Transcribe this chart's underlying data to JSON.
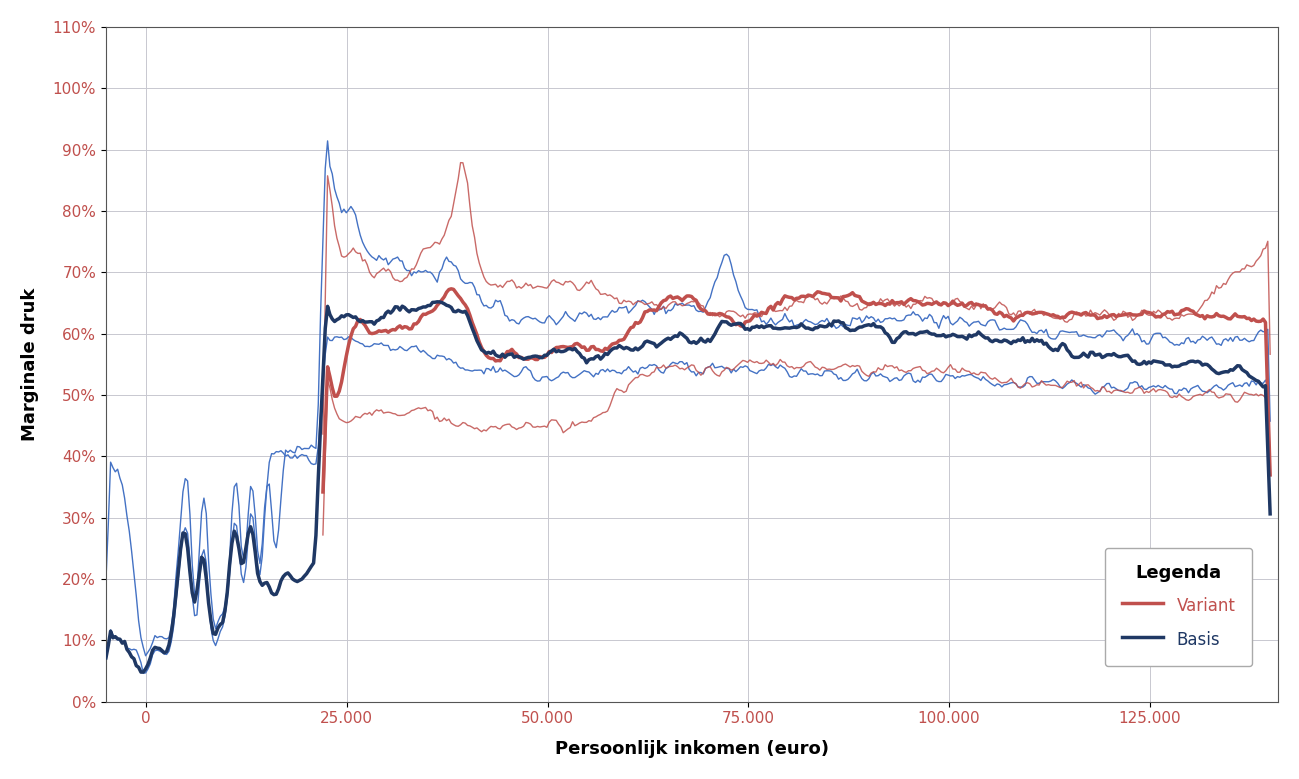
{
  "xlabel": "Persoonlijk inkomen (euro)",
  "ylabel": "Marginale druk",
  "legend_title": "Legenda",
  "legend_entries": [
    "Variant",
    "Basis"
  ],
  "variant_color_thick": "#C0504D",
  "variant_color_thin": "#C0504D",
  "basis_color_thick": "#1F3864",
  "basis_color_thin": "#4472C4",
  "background_color": "#FFFFFF",
  "plot_bg_color": "#FFFFFF",
  "grid_color": "#C8C8D0",
  "tick_label_color": "#C0504D",
  "xlim": [
    -5000,
    141000
  ],
  "ylim": [
    0.0,
    1.1
  ],
  "xticks": [
    0,
    25000,
    50000,
    75000,
    100000,
    125000
  ],
  "yticks": [
    0.0,
    0.1,
    0.2,
    0.3,
    0.4,
    0.5,
    0.6,
    0.7,
    0.8,
    0.9,
    1.0,
    1.1
  ]
}
